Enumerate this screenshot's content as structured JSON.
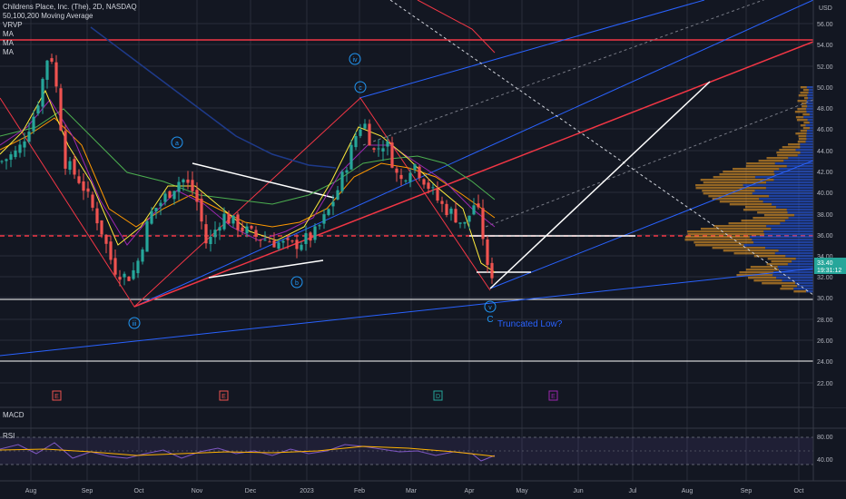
{
  "legend": {
    "title": "Childrens Place, Inc. (The), 2D, NASDAQ",
    "indicators": [
      "50,100,200 Moving Average",
      "VRVP",
      "MA",
      "MA",
      "MA"
    ]
  },
  "price_axis": {
    "currency": "USD",
    "ticks": [
      "56.00",
      "54.00",
      "52.00",
      "50.00",
      "48.00",
      "46.00",
      "44.00",
      "42.00",
      "40.00",
      "38.00",
      "36.00",
      "34.00",
      "32.00",
      "30.00",
      "28.00",
      "26.00",
      "24.00",
      "22.00"
    ],
    "last_price": "33.40",
    "countdown": "19:31:12",
    "last_price_color": "#26a69a"
  },
  "time_axis": {
    "labels": [
      "Aug",
      "Sep",
      "Oct",
      "Nov",
      "Dec",
      "2023",
      "Feb",
      "Mar",
      "Apr",
      "May",
      "Jun",
      "Jul",
      "Aug",
      "Sep",
      "Oct"
    ]
  },
  "annotations": {
    "waves": [
      "iii",
      "a",
      "b",
      "c",
      "iv",
      "v"
    ],
    "truncated_low": "Truncated Low?",
    "wave_c_label": "C"
  },
  "event_markers": [
    "E",
    "E",
    "D",
    "E"
  ],
  "panes": {
    "macd_label": "MACD",
    "rsi_label": "RSI",
    "rsi_ticks": [
      "80.00",
      "40.00"
    ]
  },
  "colors": {
    "background": "#131722",
    "bull": "#26a69a",
    "bear": "#ef5350",
    "trendline_red": "#f23645",
    "trendline_blue": "#2962ff",
    "white_lines": "#ffffff",
    "wave_labels": "#2196f3"
  }
}
